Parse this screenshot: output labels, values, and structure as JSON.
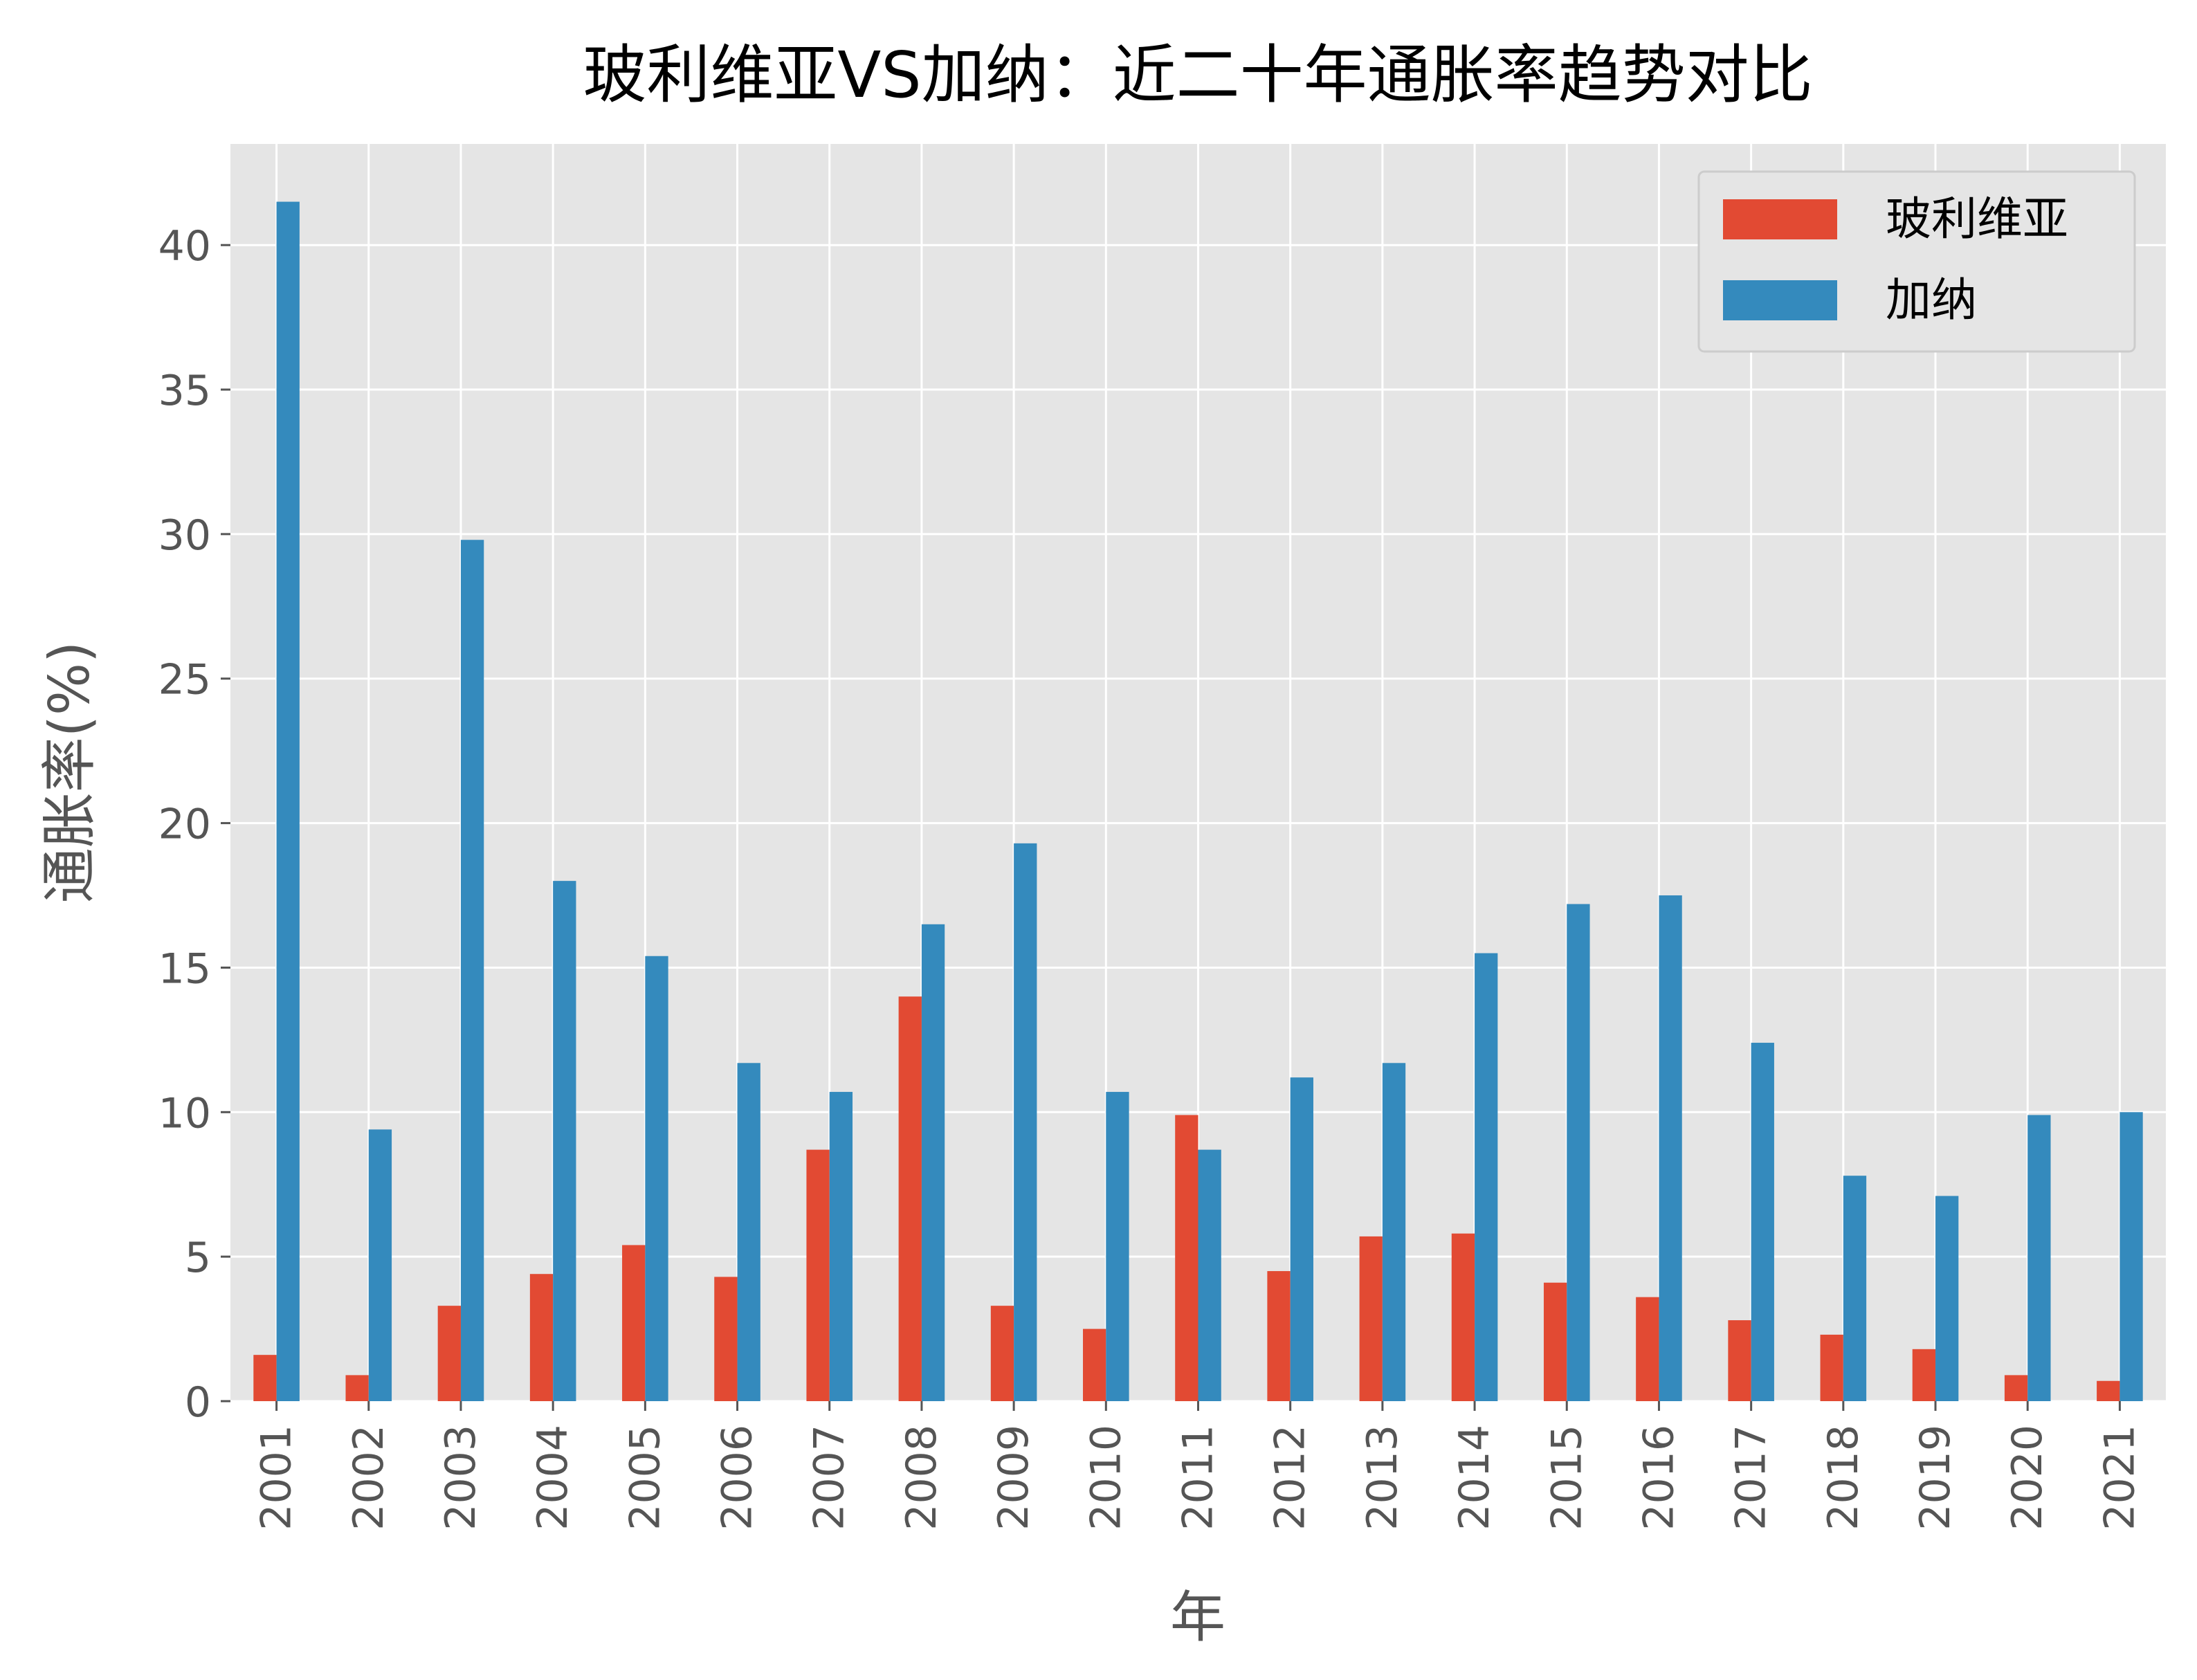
{
  "chart_data": {
    "type": "bar",
    "title": "玻利维亚VS加纳：近二十年通胀率趋势对比",
    "xlabel": "年",
    "ylabel": "通胀率(%)",
    "categories": [
      "2001",
      "2002",
      "2003",
      "2004",
      "2005",
      "2006",
      "2007",
      "2008",
      "2009",
      "2010",
      "2011",
      "2012",
      "2013",
      "2014",
      "2015",
      "2016",
      "2017",
      "2018",
      "2019",
      "2020",
      "2021"
    ],
    "series": [
      {
        "name": "玻利维亚",
        "color": "#E24A33",
        "values": [
          1.6,
          0.9,
          3.3,
          4.4,
          5.4,
          4.3,
          8.7,
          14.0,
          3.3,
          2.5,
          9.9,
          4.5,
          5.7,
          5.8,
          4.1,
          3.6,
          2.8,
          2.3,
          1.8,
          0.9,
          0.7
        ]
      },
      {
        "name": "加纳",
        "color": "#348ABD",
        "values": [
          41.5,
          9.4,
          29.8,
          18.0,
          15.4,
          11.7,
          10.7,
          16.5,
          19.3,
          10.7,
          8.7,
          11.2,
          11.7,
          15.5,
          17.2,
          17.5,
          12.4,
          7.8,
          7.1,
          9.9,
          10.0
        ]
      }
    ],
    "ylim": [
      0,
      43.5
    ],
    "yticks": [
      0,
      5,
      10,
      15,
      20,
      25,
      30,
      35,
      40
    ],
    "grid": true,
    "legend_position": "top-right",
    "plot_background": "#E5E5E5"
  }
}
